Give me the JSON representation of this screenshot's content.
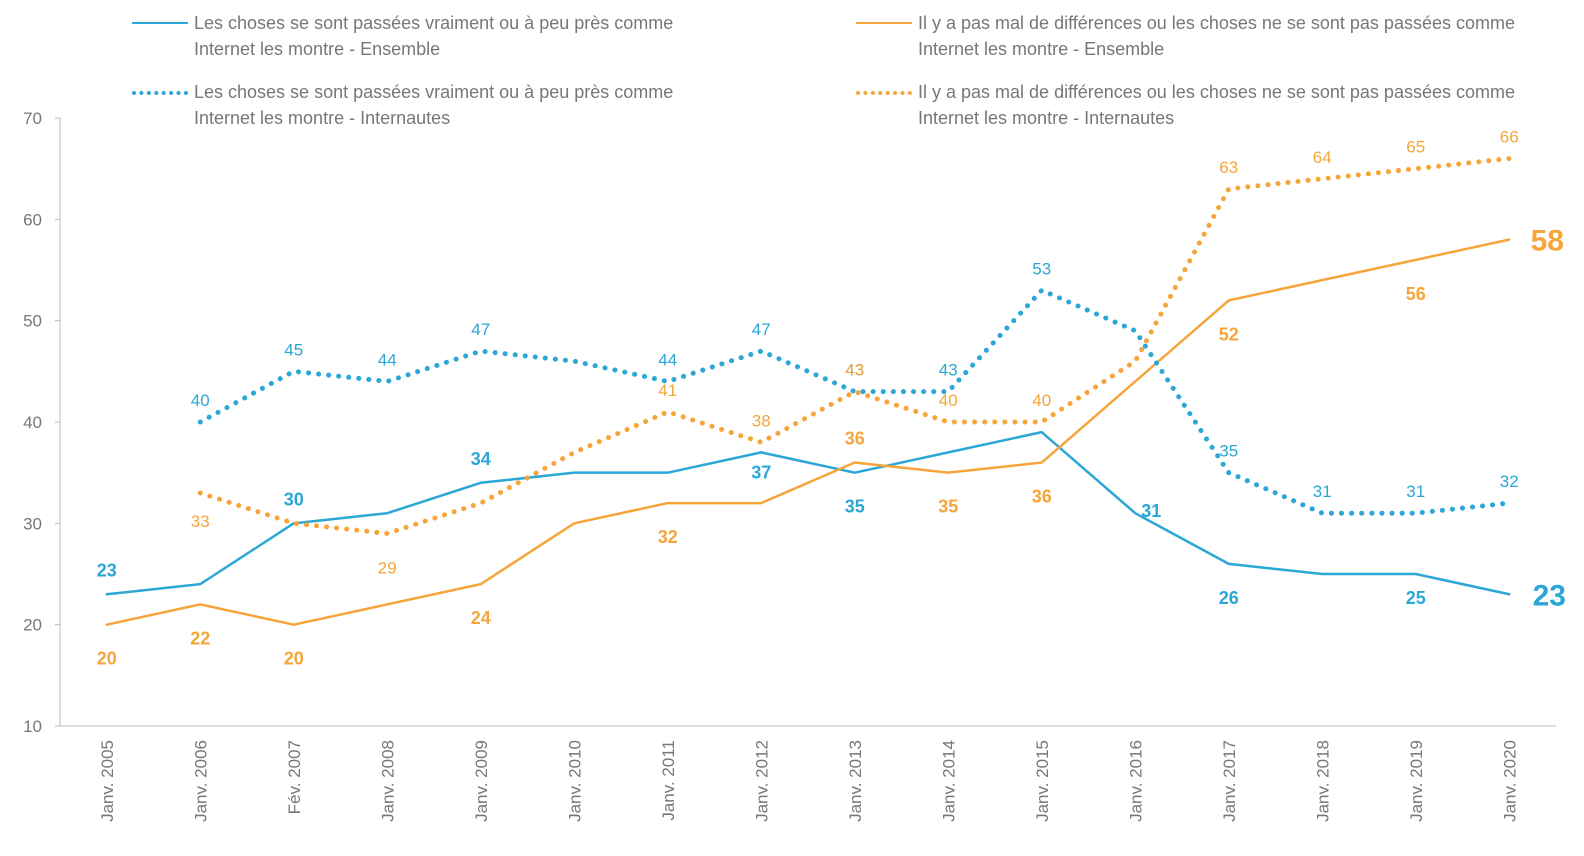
{
  "chart_data": {
    "type": "line",
    "categories": [
      "Janv. 2005",
      "Janv. 2006",
      "Fév. 2007",
      "Janv. 2008",
      "Janv. 2009",
      "Janv. 2010",
      "Janv. 2011",
      "Janv. 2012",
      "Janv. 2013",
      "Janv. 2014",
      "Janv. 2015",
      "Janv. 2016",
      "Janv. 2017",
      "Janv. 2018",
      "Janv. 2019",
      "Janv. 2020"
    ],
    "ylim": [
      10,
      70
    ],
    "yticks": [
      10,
      20,
      30,
      40,
      50,
      60,
      70
    ],
    "grid": false,
    "series": [
      {
        "name": "Les choses se sont passées vraiment ou à peu près comme Internet les montre - Ensemble",
        "color": "#2aa7d6",
        "dash": "solid",
        "values": [
          23,
          24,
          30,
          31,
          34,
          35,
          35,
          37,
          35,
          37,
          39,
          31,
          26,
          25,
          25,
          23
        ],
        "value_labels": [
          "23",
          null,
          "30",
          null,
          "34",
          null,
          null,
          "37",
          "35",
          null,
          null,
          "31",
          "26",
          null,
          "25",
          "23"
        ]
      },
      {
        "name": "Il y a pas mal de différences ou les choses ne se sont pas passées comme Internet les montre - Ensemble",
        "color": "#f5a53a",
        "dash": "solid",
        "values": [
          20,
          22,
          20,
          22,
          24,
          30,
          32,
          32,
          36,
          35,
          36,
          44,
          52,
          54,
          56,
          58
        ],
        "value_labels": [
          "20",
          "22",
          "20",
          null,
          "24",
          null,
          "32",
          null,
          "36",
          "35",
          "36",
          null,
          "52",
          null,
          "56",
          "58"
        ]
      },
      {
        "name": "Les choses se sont passées vraiment ou à peu près comme Internet les montre - Internautes",
        "color": "#2aa7d6",
        "dash": "dotted",
        "values": [
          null,
          40,
          45,
          44,
          47,
          46,
          44,
          47,
          43,
          43,
          53,
          49,
          35,
          31,
          31,
          32
        ],
        "value_labels": [
          null,
          "40",
          "45",
          "44",
          "47",
          null,
          "44",
          "47",
          "43",
          "43",
          "53",
          null,
          "35",
          "31",
          "31",
          "32"
        ]
      },
      {
        "name": "Il y a pas mal de différences ou les choses ne se sont pas passées comme Internet les montre - Internautes",
        "color": "#f5a53a",
        "dash": "dotted",
        "values": [
          null,
          33,
          30,
          29,
          32,
          37,
          41,
          38,
          43,
          40,
          40,
          46,
          63,
          64,
          65,
          66
        ],
        "value_labels": [
          null,
          "33",
          null,
          "29",
          null,
          null,
          "41",
          "38",
          "43",
          "40",
          "40",
          null,
          "63",
          "64",
          "65",
          "66"
        ]
      }
    ]
  }
}
